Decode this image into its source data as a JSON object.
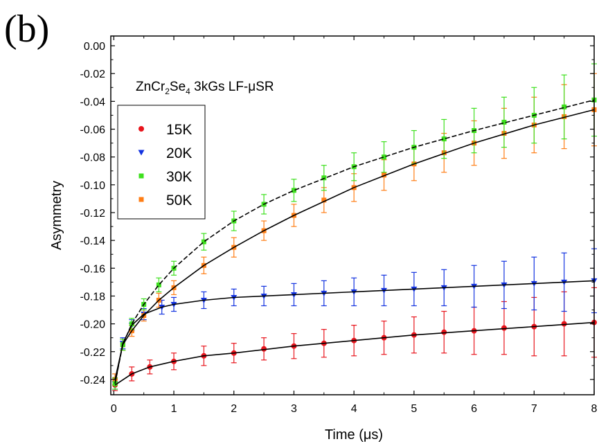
{
  "panel_label": "(b)",
  "chart_data": {
    "type": "scatter",
    "title": "",
    "annotation": "ZnCr2Se4 3kGs LF-μSR",
    "xlabel": "Time (μs)",
    "ylabel": "Asymmetry",
    "xlim": [
      -0.05,
      8.0
    ],
    "ylim": [
      -0.251,
      0.007
    ],
    "x_ticks": [
      0,
      1,
      2,
      3,
      4,
      5,
      6,
      7,
      8
    ],
    "x_tick_labels": [
      "0",
      "1",
      "2",
      "3",
      "4",
      "5",
      "6",
      "7",
      "8"
    ],
    "y_ticks": [
      0.0,
      -0.02,
      -0.04,
      -0.06,
      -0.08,
      -0.1,
      -0.12,
      -0.14,
      -0.16,
      -0.18,
      -0.2,
      -0.22,
      -0.24
    ],
    "y_tick_labels": [
      "0.00",
      "-0.02",
      "-0.04",
      "-0.06",
      "-0.08",
      "-0.10",
      "-0.12",
      "-0.14",
      "-0.16",
      "-0.18",
      "-0.20",
      "-0.22",
      "-0.24"
    ],
    "grid": false,
    "legend_position": "upper-left",
    "series": [
      {
        "name": "15K",
        "color": "#e8141c",
        "marker": "circle",
        "x": [
          0.02,
          0.3,
          0.6,
          1.0,
          1.5,
          2.0,
          2.5,
          3.0,
          3.5,
          4.0,
          4.5,
          5.0,
          5.5,
          6.0,
          6.5,
          7.0,
          7.5,
          8.0
        ],
        "y": [
          -0.244,
          -0.236,
          -0.231,
          -0.227,
          -0.223,
          -0.221,
          -0.218,
          -0.216,
          -0.214,
          -0.212,
          -0.21,
          -0.208,
          -0.206,
          -0.205,
          -0.203,
          -0.202,
          -0.2,
          -0.199
        ],
        "yerr": [
          0.004,
          0.005,
          0.005,
          0.006,
          0.007,
          0.007,
          0.008,
          0.009,
          0.01,
          0.011,
          0.012,
          0.013,
          0.015,
          0.017,
          0.019,
          0.021,
          0.023,
          0.025
        ]
      },
      {
        "name": "20K",
        "color": "#1232e0",
        "marker": "triangle-down",
        "x": [
          0.02,
          0.15,
          0.3,
          0.5,
          0.8,
          1.0,
          1.5,
          2.0,
          2.5,
          3.0,
          3.5,
          4.0,
          4.5,
          5.0,
          5.5,
          6.0,
          6.5,
          7.0,
          7.5,
          8.0
        ],
        "y": [
          -0.243,
          -0.214,
          -0.201,
          -0.193,
          -0.188,
          -0.186,
          -0.183,
          -0.181,
          -0.18,
          -0.179,
          -0.178,
          -0.177,
          -0.176,
          -0.175,
          -0.174,
          -0.173,
          -0.172,
          -0.171,
          -0.17,
          -0.169
        ],
        "yerr": [
          0.004,
          0.004,
          0.004,
          0.004,
          0.005,
          0.005,
          0.006,
          0.006,
          0.007,
          0.008,
          0.009,
          0.01,
          0.011,
          0.012,
          0.013,
          0.015,
          0.017,
          0.019,
          0.021,
          0.023
        ]
      },
      {
        "name": "30K",
        "color": "#3ee01e",
        "marker": "square",
        "x": [
          0.02,
          0.15,
          0.3,
          0.5,
          0.75,
          1.0,
          1.5,
          2.0,
          2.5,
          3.0,
          3.5,
          4.0,
          4.5,
          5.0,
          5.5,
          6.0,
          6.5,
          7.0,
          7.5,
          8.0
        ],
        "y": [
          -0.243,
          -0.215,
          -0.2,
          -0.186,
          -0.172,
          -0.16,
          -0.141,
          -0.126,
          -0.114,
          -0.104,
          -0.095,
          -0.087,
          -0.08,
          -0.073,
          -0.067,
          -0.061,
          -0.055,
          -0.05,
          -0.044,
          -0.039
        ],
        "yerr": [
          0.004,
          0.004,
          0.004,
          0.004,
          0.005,
          0.005,
          0.006,
          0.007,
          0.007,
          0.008,
          0.009,
          0.01,
          0.011,
          0.012,
          0.014,
          0.016,
          0.018,
          0.02,
          0.023,
          0.026
        ]
      },
      {
        "name": "50K",
        "color": "#ff7d14",
        "marker": "square",
        "x": [
          0.02,
          0.15,
          0.3,
          0.5,
          0.75,
          1.0,
          1.5,
          2.0,
          2.5,
          3.0,
          3.5,
          4.0,
          4.5,
          5.0,
          5.5,
          6.0,
          6.5,
          7.0,
          7.5,
          8.0
        ],
        "y": [
          -0.24,
          -0.215,
          -0.205,
          -0.194,
          -0.183,
          -0.174,
          -0.158,
          -0.145,
          -0.133,
          -0.122,
          -0.111,
          -0.102,
          -0.093,
          -0.085,
          -0.077,
          -0.07,
          -0.063,
          -0.057,
          -0.051,
          -0.046
        ],
        "yerr": [
          0.004,
          0.004,
          0.004,
          0.004,
          0.005,
          0.005,
          0.006,
          0.007,
          0.007,
          0.008,
          0.009,
          0.01,
          0.011,
          0.012,
          0.014,
          0.016,
          0.018,
          0.02,
          0.023,
          0.026
        ]
      }
    ],
    "fit_lines": [
      {
        "series": "15K",
        "color": "#000000",
        "style": "solid",
        "x": [
          0.02,
          0.3,
          0.6,
          1.0,
          1.5,
          2.0,
          3.0,
          4.0,
          5.0,
          6.0,
          7.0,
          8.0
        ],
        "y": [
          -0.244,
          -0.236,
          -0.231,
          -0.227,
          -0.223,
          -0.221,
          -0.216,
          -0.212,
          -0.208,
          -0.205,
          -0.202,
          -0.199
        ]
      },
      {
        "series": "20K",
        "color": "#000000",
        "style": "solid",
        "x": [
          0.02,
          0.15,
          0.3,
          0.5,
          0.8,
          1.0,
          1.5,
          2.0,
          3.0,
          4.0,
          5.0,
          6.0,
          7.0,
          8.0
        ],
        "y": [
          -0.243,
          -0.214,
          -0.201,
          -0.193,
          -0.188,
          -0.186,
          -0.183,
          -0.181,
          -0.179,
          -0.177,
          -0.175,
          -0.173,
          -0.171,
          -0.169
        ]
      },
      {
        "series": "30K",
        "color": "#000000",
        "style": "dashed",
        "x": [
          0.02,
          0.15,
          0.3,
          0.5,
          0.75,
          1.0,
          1.5,
          2.0,
          2.5,
          3.0,
          4.0,
          5.0,
          6.0,
          7.0,
          8.0
        ],
        "y": [
          -0.243,
          -0.215,
          -0.2,
          -0.186,
          -0.172,
          -0.16,
          -0.141,
          -0.126,
          -0.114,
          -0.104,
          -0.087,
          -0.073,
          -0.061,
          -0.05,
          -0.039
        ]
      },
      {
        "series": "50K",
        "color": "#000000",
        "style": "solid",
        "x": [
          0.02,
          0.15,
          0.3,
          0.5,
          0.75,
          1.0,
          1.5,
          2.0,
          2.5,
          3.0,
          4.0,
          5.0,
          6.0,
          7.0,
          8.0
        ],
        "y": [
          -0.24,
          -0.215,
          -0.205,
          -0.194,
          -0.183,
          -0.174,
          -0.158,
          -0.145,
          -0.133,
          -0.122,
          -0.102,
          -0.085,
          -0.07,
          -0.057,
          -0.046
        ]
      }
    ]
  }
}
